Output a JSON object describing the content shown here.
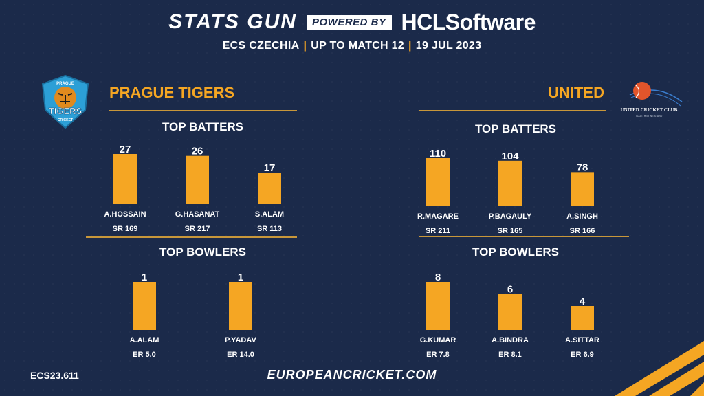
{
  "header": {
    "brand_stats": "STATS GUN",
    "brand_powered": "POWERED BY",
    "brand_hcl": "HCLSoftware",
    "subtitle_event": "ECS CZECHIA",
    "subtitle_matches": "UP TO MATCH 12",
    "subtitle_date": "19 JUL 2023",
    "separator": "|"
  },
  "teams": {
    "left": {
      "name": "PRAGUE TIGERS",
      "logo_text_top": "PRAGUE",
      "logo_text_main": "TIGERS",
      "logo_text_bottom": "CRICKET"
    },
    "right": {
      "name": "UNITED",
      "logo_text": "UNITED CRICKET CLUB",
      "logo_subtext": "TOGETHER WE STAND"
    }
  },
  "sections": {
    "top_batters": "TOP BATTERS",
    "top_bowlers": "TOP BOWLERS"
  },
  "colors": {
    "background": "#1b2a4a",
    "bar": "#f5a623",
    "accent": "#f5a623",
    "divider": "#c8973a"
  },
  "footer": {
    "code": "ECS23.611",
    "website": "EUROPEANCRICKET.COM"
  },
  "chart_data": [
    {
      "type": "bar",
      "team": "PRAGUE TIGERS",
      "title": "TOP BATTERS",
      "categories": [
        "A.HOSSAIN",
        "G.HASANAT",
        "S.ALAM"
      ],
      "values": [
        27,
        26,
        17
      ],
      "stats": [
        "SR 169",
        "SR 217",
        "SR 113"
      ]
    },
    {
      "type": "bar",
      "team": "PRAGUE TIGERS",
      "title": "TOP BOWLERS",
      "categories": [
        "A.ALAM",
        "P.YADAV"
      ],
      "values": [
        1,
        1
      ],
      "stats": [
        "ER 5.0",
        "ER 14.0"
      ]
    },
    {
      "type": "bar",
      "team": "UNITED",
      "title": "TOP BATTERS",
      "categories": [
        "R.MAGARE",
        "P.BAGAULY",
        "A.SINGH"
      ],
      "values": [
        110,
        104,
        78
      ],
      "stats": [
        "SR 211",
        "SR 165",
        "SR 166"
      ]
    },
    {
      "type": "bar",
      "team": "UNITED",
      "title": "TOP BOWLERS",
      "categories": [
        "G.KUMAR",
        "A.BINDRA",
        "A.SITTAR"
      ],
      "values": [
        8,
        6,
        4
      ],
      "stats": [
        "ER 7.8",
        "ER 8.1",
        "ER 6.9"
      ]
    }
  ]
}
